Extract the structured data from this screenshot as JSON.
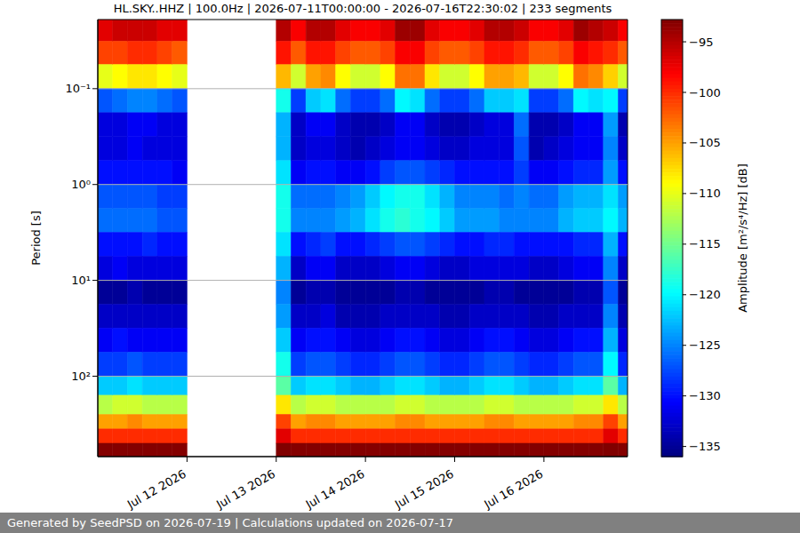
{
  "chart_data": {
    "type": "heatmap",
    "title": "HL.SKY..HHZ | 100.0Hz | 2026-07-11T00:00:00 - 2026-07-16T22:30:02 | 233 segments",
    "footer": "Generated by SeedPSD on 2026-07-19 | Calculations updated on 2026-07-17",
    "y_label": "Period [s]",
    "log": "y",
    "grid": true,
    "xlim": [
      11,
      16.9375
    ],
    "xticks": [
      {
        "value": 12,
        "label": "Jul 12 2026"
      },
      {
        "value": 13,
        "label": "Jul 13 2026"
      },
      {
        "value": 14,
        "label": "Jul 14 2026"
      },
      {
        "value": 15,
        "label": "Jul 15 2026"
      },
      {
        "value": 16,
        "label": "Jul 16 2026"
      }
    ],
    "ylim": [
      0.019,
      690
    ],
    "yticks": [
      {
        "value": 0.1,
        "label": "10⁻¹"
      },
      {
        "value": 1,
        "label": "10⁰"
      },
      {
        "value": 10,
        "label": "10¹"
      },
      {
        "value": 100,
        "label": "10²"
      }
    ],
    "x_edges": [
      11,
      11.1667,
      11.3333,
      11.5,
      11.6667,
      11.8333,
      12,
      12.1667,
      12.3333,
      12.5,
      12.6667,
      12.8333,
      13,
      13.1667,
      13.3333,
      13.5,
      13.6667,
      13.8333,
      14,
      14.1667,
      14.3333,
      14.5,
      14.6667,
      14.8333,
      15,
      15.1667,
      15.3333,
      15.5,
      15.6667,
      15.8333,
      16,
      16.1667,
      16.3333,
      16.5,
      16.6667,
      16.8333,
      16.9375
    ],
    "y_edges": [
      0.019,
      0.032,
      0.056,
      0.1,
      0.178,
      0.316,
      0.562,
      1,
      1.78,
      3.16,
      5.62,
      10,
      17.8,
      31.6,
      56.2,
      100,
      158,
      251,
      355,
      501,
      690
    ],
    "z": [
      [
        -97,
        -101,
        -110,
        -127,
        -132,
        -132,
        -130,
        -127,
        -126,
        -130,
        -132,
        -135,
        -133,
        -131,
        -128,
        -122,
        -112,
        -105,
        -100,
        -93
      ],
      [
        -96,
        -101,
        -109,
        -126,
        -132,
        -132,
        -130,
        -127,
        -126,
        -130,
        -131,
        -135,
        -133,
        -130,
        -128,
        -122,
        -111,
        -105,
        -100,
        -93
      ],
      [
        -96,
        -100,
        -108,
        -125,
        -131,
        -131,
        -130,
        -127,
        -126,
        -130,
        -132,
        -134,
        -133,
        -131,
        -127,
        -121,
        -111,
        -104,
        -100,
        -93
      ],
      [
        -96,
        -100,
        -108,
        -125,
        -131,
        -132,
        -130,
        -127,
        -126,
        -129,
        -132,
        -135,
        -133,
        -131,
        -128,
        -122,
        -112,
        -105,
        -100,
        -93
      ],
      [
        -97,
        -101,
        -109,
        -126,
        -132,
        -132,
        -130,
        -128,
        -127,
        -130,
        -132,
        -135,
        -133,
        -131,
        -128,
        -122,
        -112,
        -105,
        -100,
        -93
      ],
      [
        -97,
        -102,
        -110,
        -127,
        -132,
        -132,
        -131,
        -128,
        -127,
        -130,
        -132,
        -135,
        -133,
        -131,
        -128,
        -122,
        -112,
        -105,
        -100,
        -93
      ],
      null,
      null,
      null,
      null,
      null,
      null,
      [
        -95,
        -99,
        -106,
        -119,
        -123,
        -123,
        -121,
        -119,
        -119,
        -121,
        -123,
        -125,
        -124,
        -122,
        -119,
        -116,
        -108,
        -101,
        -97,
        -92
      ],
      [
        -98,
        -102,
        -111,
        -128,
        -133,
        -133,
        -131,
        -126,
        -125,
        -130,
        -133,
        -135,
        -133,
        -131,
        -128,
        -122,
        -112,
        -105,
        -100,
        -93
      ],
      [
        -95,
        -99,
        -105,
        -122,
        -131,
        -132,
        -130,
        -126,
        -125,
        -129,
        -131,
        -134,
        -133,
        -130,
        -127,
        -121,
        -111,
        -104,
        -100,
        -93
      ],
      [
        -95,
        -99,
        -104,
        -121,
        -131,
        -132,
        -130,
        -126,
        -125,
        -128,
        -131,
        -134,
        -132,
        -130,
        -127,
        -121,
        -111,
        -104,
        -100,
        -93
      ],
      [
        -97,
        -101,
        -109,
        -126,
        -133,
        -133,
        -131,
        -125,
        -124,
        -130,
        -133,
        -135,
        -134,
        -131,
        -128,
        -122,
        -112,
        -105,
        -100,
        -93
      ],
      [
        -98,
        -102,
        -111,
        -128,
        -134,
        -134,
        -131,
        -124,
        -123,
        -130,
        -133,
        -135,
        -134,
        -132,
        -129,
        -123,
        -112,
        -105,
        -100,
        -93
      ],
      [
        -98,
        -102,
        -111,
        -128,
        -134,
        -133,
        -130,
        -122,
        -121,
        -129,
        -133,
        -135,
        -134,
        -132,
        -129,
        -123,
        -112,
        -105,
        -100,
        -93
      ],
      [
        -97,
        -101,
        -109,
        -126,
        -133,
        -132,
        -128,
        -120,
        -119,
        -128,
        -132,
        -135,
        -133,
        -131,
        -128,
        -122,
        -112,
        -105,
        -100,
        -93
      ],
      [
        -94,
        -98,
        -103,
        -120,
        -131,
        -131,
        -127,
        -119,
        -118,
        -127,
        -131,
        -134,
        -133,
        -130,
        -127,
        -121,
        -111,
        -104,
        -100,
        -93
      ],
      [
        -94,
        -98,
        -103,
        -121,
        -131,
        -131,
        -127,
        -119,
        -119,
        -127,
        -131,
        -134,
        -133,
        -130,
        -127,
        -121,
        -111,
        -104,
        -100,
        -93
      ],
      [
        -97,
        -101,
        -108,
        -126,
        -133,
        -132,
        -128,
        -121,
        -120,
        -128,
        -132,
        -135,
        -133,
        -131,
        -128,
        -122,
        -112,
        -105,
        -100,
        -93
      ],
      [
        -98,
        -102,
        -111,
        -128,
        -134,
        -133,
        -129,
        -123,
        -122,
        -129,
        -133,
        -135,
        -134,
        -132,
        -129,
        -123,
        -112,
        -105,
        -100,
        -93
      ],
      [
        -98,
        -102,
        -111,
        -128,
        -134,
        -133,
        -130,
        -125,
        -124,
        -130,
        -133,
        -135,
        -134,
        -132,
        -129,
        -123,
        -112,
        -105,
        -100,
        -93
      ],
      [
        -97,
        -101,
        -109,
        -126,
        -133,
        -132,
        -130,
        -125,
        -124,
        -130,
        -132,
        -135,
        -133,
        -131,
        -128,
        -122,
        -112,
        -105,
        -100,
        -93
      ],
      [
        -95,
        -99,
        -105,
        -122,
        -132,
        -132,
        -130,
        -125,
        -124,
        -129,
        -132,
        -134,
        -133,
        -130,
        -127,
        -121,
        -111,
        -104,
        -100,
        -93
      ],
      [
        -95,
        -99,
        -105,
        -122,
        -132,
        -132,
        -130,
        -126,
        -125,
        -129,
        -132,
        -134,
        -133,
        -130,
        -127,
        -121,
        -111,
        -104,
        -100,
        -93
      ],
      [
        -96,
        -100,
        -106,
        -121,
        -126,
        -127,
        -128,
        -125,
        -125,
        -130,
        -132,
        -135,
        -133,
        -131,
        -128,
        -122,
        -112,
        -105,
        -100,
        -93
      ],
      [
        -98,
        -102,
        -111,
        -128,
        -134,
        -134,
        -131,
        -126,
        -125,
        -130,
        -133,
        -135,
        -134,
        -132,
        -129,
        -123,
        -112,
        -105,
        -100,
        -93
      ],
      [
        -98,
        -102,
        -111,
        -128,
        -134,
        -133,
        -131,
        -126,
        -125,
        -130,
        -133,
        -135,
        -134,
        -132,
        -129,
        -123,
        -112,
        -105,
        -100,
        -93
      ],
      [
        -97,
        -101,
        -109,
        -126,
        -133,
        -132,
        -130,
        -124,
        -123,
        -130,
        -132,
        -135,
        -133,
        -131,
        -128,
        -122,
        -112,
        -105,
        -100,
        -93
      ],
      [
        -94,
        -98,
        -103,
        -120,
        -131,
        -131,
        -129,
        -123,
        -122,
        -129,
        -131,
        -134,
        -133,
        -130,
        -127,
        -121,
        -111,
        -104,
        -100,
        -93
      ],
      [
        -95,
        -99,
        -104,
        -121,
        -131,
        -131,
        -129,
        -123,
        -122,
        -129,
        -131,
        -134,
        -133,
        -130,
        -127,
        -121,
        -111,
        -104,
        -100,
        -93
      ],
      [
        -96,
        -100,
        -107,
        -120,
        -124,
        -125,
        -124,
        -121,
        -120,
        -123,
        -125,
        -127,
        -125,
        -123,
        -120,
        -116,
        -108,
        -101,
        -97,
        -92
      ],
      [
        -98,
        -102,
        -111,
        -128,
        -134,
        -133,
        -130,
        -124,
        -123,
        -130,
        -133,
        -135,
        -134,
        -132,
        -129,
        -123,
        -112,
        -105,
        -100,
        -93
      ]
    ],
    "colorbar": {
      "label": "Amplitude [m²/s⁴/Hz] [dB]",
      "range": [
        -136,
        -92.8
      ],
      "ticks": [
        -95,
        -100,
        -105,
        -110,
        -115,
        -120,
        -125,
        -130,
        -135
      ]
    }
  }
}
